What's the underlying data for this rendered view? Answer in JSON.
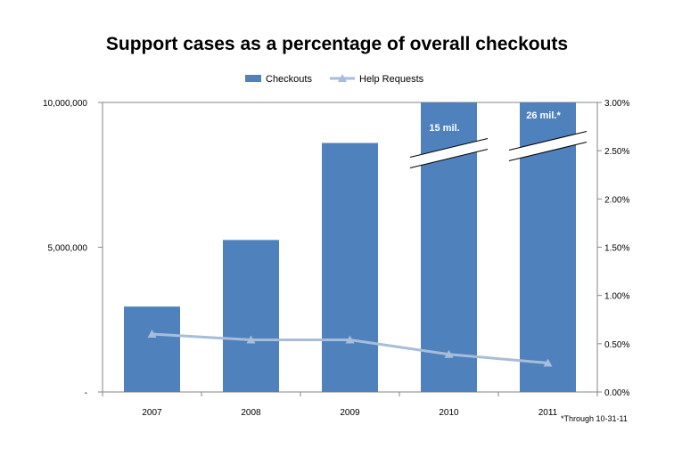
{
  "chart_data": {
    "type": "bar",
    "title": "Support cases as a percentage of overall checkouts",
    "categories": [
      "2007",
      "2008",
      "2009",
      "2010",
      "2011"
    ],
    "series": [
      {
        "name": "Checkouts",
        "kind": "bar",
        "axis": "left",
        "color": "#4f81bd",
        "values": [
          2950000,
          5250000,
          8600000,
          15000000,
          26000000
        ]
      },
      {
        "name": "Help Requests",
        "kind": "line",
        "axis": "right",
        "color": "#a8bdd9",
        "marker": "triangle",
        "values": [
          0.006,
          0.0054,
          0.0054,
          0.0039,
          0.003
        ]
      }
    ],
    "left_axis": {
      "min": 0,
      "max": 10000000,
      "ticks": [
        "-",
        "5,000,000",
        "10,000,000"
      ]
    },
    "right_axis": {
      "min": 0,
      "max": 0.03,
      "format": "percent",
      "ticks": [
        "0.00%",
        "0.50%",
        "1.00%",
        "1.50%",
        "2.00%",
        "2.50%",
        "3.00%"
      ]
    },
    "bar_labels": [
      "",
      "",
      "",
      "15 mil.",
      "26 mil.*"
    ],
    "axis_break": "bars for 2010 and 2011 exceed the left axis maximum",
    "legend_position": "top",
    "grid": false,
    "footnote": "*Through 10-31-11"
  }
}
